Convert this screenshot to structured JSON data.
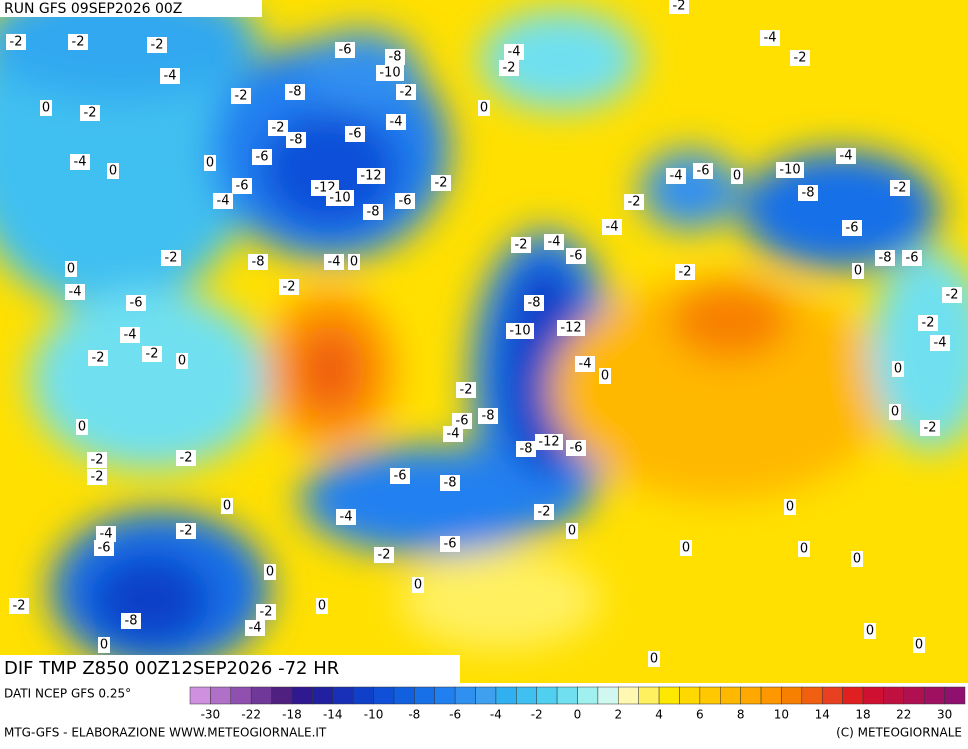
{
  "header": {
    "run": "RUN GFS 09SEP2026 00Z",
    "title": "DIF TMP Z850 00Z12SEP2026 -72 HR",
    "source": "DATI NCEP GFS 0.25°"
  },
  "map": {
    "labels": [
      -2,
      -2,
      -2,
      -4,
      -2,
      0,
      -2,
      -4,
      0,
      0,
      -4,
      -6,
      -6,
      -8,
      -10,
      -2,
      -4,
      -8,
      -6,
      -2,
      -8,
      -6,
      -12,
      -12,
      -10,
      -8,
      -6,
      -2,
      0,
      -4,
      -2,
      -2,
      -4,
      -2,
      -4,
      -2,
      -10,
      -8,
      -6,
      -8,
      -6,
      0,
      -2,
      -2,
      -4,
      0,
      -4,
      -6,
      -2,
      -4,
      -2,
      -4,
      -6,
      -2,
      -8,
      -10,
      -12,
      -4,
      0,
      -2,
      -6,
      -8,
      -4,
      -8,
      -12,
      -6,
      -2,
      0,
      -6,
      -8,
      -4,
      -6,
      -2,
      0,
      -4,
      0,
      -8,
      -2,
      -2,
      0,
      -4,
      -6,
      -4,
      -2,
      -2,
      0,
      0,
      -2,
      -2,
      -2,
      0,
      -2,
      -4,
      -6,
      -2,
      -8,
      0,
      -4,
      -2,
      0,
      0,
      0,
      0,
      0,
      0,
      0,
      0,
      0,
      -2,
      0,
      0,
      0
    ]
  },
  "legend": {
    "labels": [
      -30,
      -22,
      -18,
      -14,
      -10,
      -8,
      -6,
      -4,
      -2,
      0,
      2,
      4,
      6,
      8,
      10,
      14,
      18,
      22,
      30
    ],
    "colors": [
      "#d090e0",
      "#b070c8",
      "#9050b0",
      "#703898",
      "#502080",
      "#301890",
      "#2020a0",
      "#1830b8",
      "#1040c8",
      "#1050d8",
      "#1060e0",
      "#1870e8",
      "#2080f0",
      "#3090f0",
      "#40a0f0",
      "#30b0f0",
      "#40c0f0",
      "#50d0f0",
      "#70e0f0",
      "#a0f0f0",
      "#d0f8f0",
      "#fff8b0",
      "#fff060",
      "#ffe800",
      "#ffd800",
      "#ffc800",
      "#ffb800",
      "#ffa800",
      "#ff9800",
      "#f88000",
      "#f06010",
      "#e84020",
      "#e02020",
      "#d01030",
      "#c01040",
      "#b01050",
      "#a01060",
      "#901070"
    ]
  },
  "footer": {
    "credit": "MTG-GFS - ELABORAZIONE WWW.METEOGIORNALE.IT",
    "copyright": "(C) METEOGIORNALE"
  }
}
